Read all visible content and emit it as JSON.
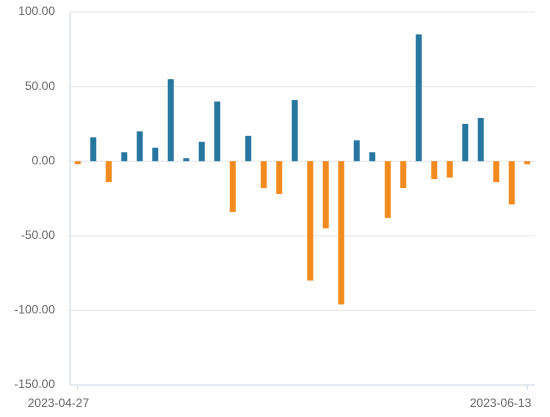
{
  "chart_data": {
    "type": "bar",
    "categories": [
      "2023-04-27",
      null,
      null,
      null,
      null,
      null,
      null,
      null,
      null,
      null,
      null,
      null,
      null,
      null,
      null,
      null,
      null,
      null,
      null,
      null,
      null,
      null,
      null,
      null,
      null,
      null,
      null,
      null,
      null,
      "2023-06-13"
    ],
    "values": [
      -2,
      16,
      -14,
      6,
      20,
      9,
      55,
      2,
      13,
      40,
      -34,
      17,
      -18,
      -22,
      41,
      -80,
      -45,
      -96,
      14,
      6,
      -38,
      -18,
      85,
      -12,
      -11,
      25,
      29,
      -14,
      -29,
      -2
    ],
    "colors": {
      "positive": "#27769f",
      "negative": "#f28a1e"
    },
    "ylim": [
      -150,
      100
    ],
    "yticks": [
      {
        "value": -150,
        "label": "-150.00"
      },
      {
        "value": -100,
        "label": "-100.00"
      },
      {
        "value": -50,
        "label": "-50.00"
      },
      {
        "value": 0,
        "label": "0.00"
      },
      {
        "value": 50,
        "label": "50.00"
      },
      {
        "value": 100,
        "label": "100.00"
      }
    ],
    "grid": true
  }
}
